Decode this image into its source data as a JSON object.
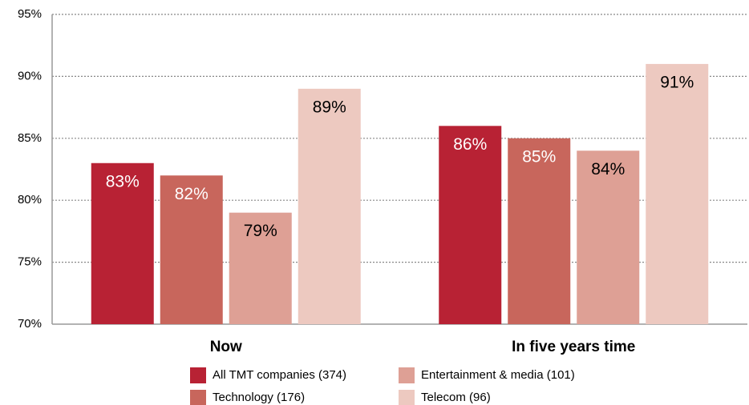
{
  "chart_data": {
    "type": "bar",
    "categories": [
      "Now",
      "In five years time"
    ],
    "series": [
      {
        "name": "All TMT companies (374)",
        "color": "#b82234",
        "label_color": "#ffffff",
        "values": [
          83,
          86
        ],
        "value_labels": [
          "83%",
          "86%"
        ]
      },
      {
        "name": "Technology (176)",
        "color": "#c8665c",
        "label_color": "#ffffff",
        "values": [
          82,
          85
        ],
        "value_labels": [
          "82%",
          "85%"
        ]
      },
      {
        "name": "Entertainment & media (101)",
        "color": "#dea095",
        "label_color": "#000000",
        "values": [
          79,
          84
        ],
        "value_labels": [
          "79%",
          "84%"
        ]
      },
      {
        "name": "Telecom (96)",
        "color": "#edc9c0",
        "label_color": "#000000",
        "values": [
          89,
          91
        ],
        "value_labels": [
          "89%",
          "91%"
        ]
      }
    ],
    "ylim": [
      70,
      95
    ],
    "yticks": [
      {
        "value": 70,
        "label": "70%"
      },
      {
        "value": 75,
        "label": "75%"
      },
      {
        "value": 80,
        "label": "80%"
      },
      {
        "value": 85,
        "label": "85%"
      },
      {
        "value": 90,
        "label": "90%"
      },
      {
        "value": 95,
        "label": "95%"
      }
    ],
    "grid": true
  }
}
